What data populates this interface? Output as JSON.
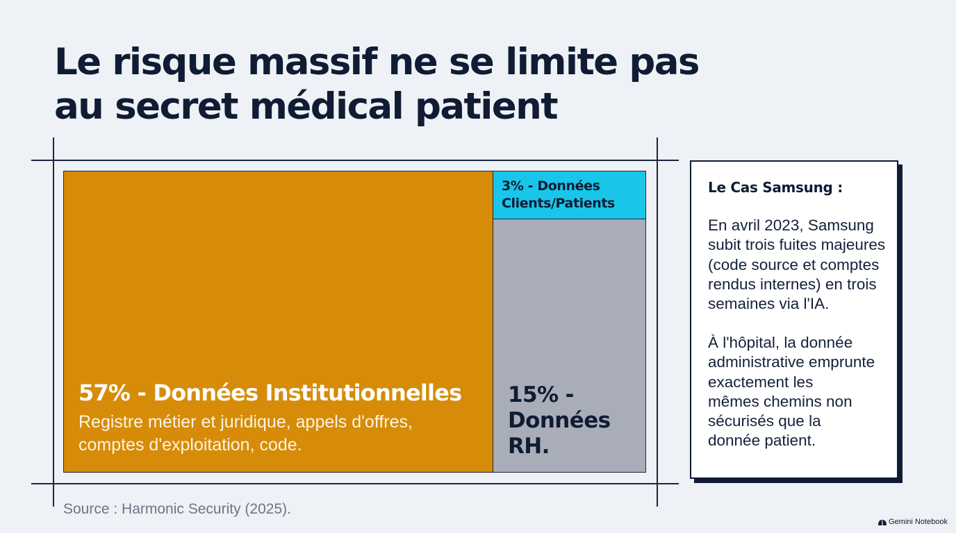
{
  "title": {
    "line1": "Le risque massif ne se limite pas",
    "line2": "au secret médical patient"
  },
  "chart_data": {
    "type": "treemap",
    "title": "Le risque massif ne se limite pas au secret médical patient",
    "segments": [
      {
        "label": "57% - Données Institutionnelles",
        "value": 57,
        "description": "Registre métier et juridique, appels d'offres, comptes d'exploitation, code.",
        "color": "#d68c08"
      },
      {
        "label": "3% - Données Clients/Patients",
        "value": 3,
        "color": "#19c6ea"
      },
      {
        "label": "15% - Données RH.",
        "value": 15,
        "color": "#a9adb8"
      }
    ]
  },
  "treemap": {
    "inst": {
      "label": "57% - Données Institutionnelles",
      "desc_line1": "Registre métier et juridique, appels d'offres,",
      "desc_line2": "comptes d'exploitation, code."
    },
    "clients": {
      "line1": "3% - Données",
      "line2": "Clients/Patients"
    },
    "rh": {
      "line1": "15% -",
      "line2": "Données",
      "line3": "RH."
    }
  },
  "source": "Source : Harmonic Security (2025).",
  "side_card": {
    "title": "Le Cas Samsung :",
    "para1": [
      "En avril 2023, Samsung",
      "subit trois fuites majeures",
      "(code source et comptes",
      "rendus internes) en trois",
      "semaines via l'IA."
    ],
    "para2": [
      "À l'hôpital, la donnée",
      "administrative emprunte",
      "exactement les",
      "mêmes chemins non",
      "sécurisés que la",
      "donnée patient."
    ]
  },
  "brand": {
    "label": "Gemini Notebook",
    "icon": "notebook-icon"
  },
  "colors": {
    "background": "#eef1f5",
    "ink": "#0f1c33",
    "institutional": "#d68c08",
    "clients": "#19c6ea",
    "rh": "#a9adb8"
  }
}
